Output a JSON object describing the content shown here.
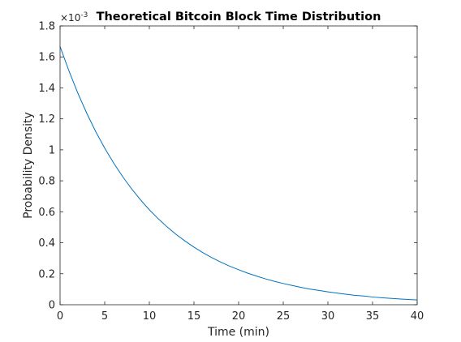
{
  "chart_data": {
    "type": "line",
    "title": "Theoretical Bitcoin Block Time Distribution",
    "xlabel": "Time (min)",
    "ylabel": "Probability Density",
    "y_exponent_label": "×10",
    "y_exponent_power": "-3",
    "xlim": [
      0,
      40
    ],
    "ylim": [
      0,
      0.0018
    ],
    "x_ticks": [
      0,
      5,
      10,
      15,
      20,
      25,
      30,
      35,
      40
    ],
    "y_ticks": [
      0,
      0.0002,
      0.0004,
      0.0006,
      0.0008,
      0.001,
      0.0012,
      0.0014,
      0.0016,
      0.0018
    ],
    "y_tick_labels": [
      "0",
      "0.2",
      "0.4",
      "0.6",
      "0.8",
      "1",
      "1.2",
      "1.4",
      "1.6",
      "1.8"
    ],
    "grid": false,
    "line_color": "#0072bd",
    "series": [
      {
        "x": [
          0,
          1,
          2,
          3,
          4,
          5,
          6,
          7,
          8,
          9,
          10,
          11,
          12,
          13,
          14,
          15,
          16,
          17,
          18,
          19,
          20,
          21,
          22,
          23,
          24,
          25,
          26,
          27,
          28,
          29,
          30,
          31,
          32,
          33,
          34,
          35,
          36,
          37,
          38,
          39,
          40
        ],
        "values": [
          0.001667,
          0.001509,
          0.001365,
          0.001235,
          0.001117,
          0.001011,
          0.000915,
          0.000828,
          0.000749,
          0.000678,
          0.000613,
          0.000555,
          0.000502,
          0.000454,
          0.000411,
          0.000372,
          0.000336,
          0.000304,
          0.000275,
          0.000249,
          0.000226,
          0.000204,
          0.000185,
          0.000167,
          0.000151,
          0.000137,
          0.000124,
          0.000112,
          0.000101,
          9.2e-05,
          8.3e-05,
          7.5e-05,
          6.8e-05,
          6.1e-05,
          5.6e-05,
          5e-05,
          4.5e-05,
          4.1e-05,
          3.7e-05,
          3.4e-05,
          3.1e-05
        ]
      }
    ]
  }
}
